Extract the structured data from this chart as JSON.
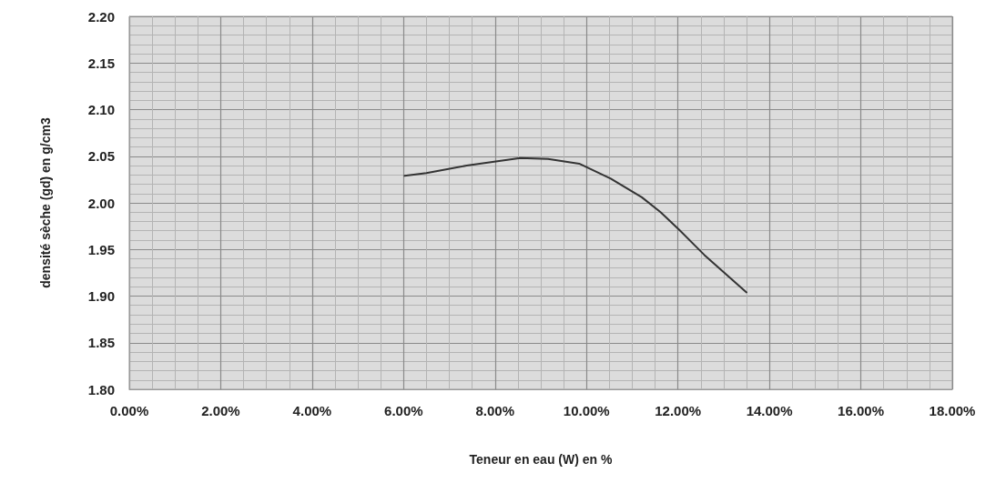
{
  "chart_data": {
    "type": "line",
    "xlabel": "Teneur en eau (W) en %",
    "ylabel": "densité sèche (gd) en g/cm3",
    "series": [
      {
        "color": "#333333",
        "x": [
          6.02,
          6.5,
          7.38,
          8.55,
          9.16,
          9.84,
          10.53,
          11.21,
          11.62,
          12.03,
          12.58,
          13.5
        ],
        "values": [
          2.029,
          2.032,
          2.04,
          2.048,
          2.047,
          2.042,
          2.026,
          2.006,
          1.99,
          1.971,
          1.944,
          1.904
        ]
      }
    ],
    "xlim": [
      0,
      18
    ],
    "xticks": [
      {
        "value": 0,
        "label": "0.00%"
      },
      {
        "value": 2,
        "label": "2.00%"
      },
      {
        "value": 4,
        "label": "4.00%"
      },
      {
        "value": 6,
        "label": "6.00%"
      },
      {
        "value": 8,
        "label": "8.00%"
      },
      {
        "value": 10,
        "label": "10.00%"
      },
      {
        "value": 12,
        "label": "12.00%"
      },
      {
        "value": 14,
        "label": "14.00%"
      },
      {
        "value": 16,
        "label": "16.00%"
      },
      {
        "value": 18,
        "label": "18.00%"
      }
    ],
    "ylim": [
      1.8,
      2.2
    ],
    "yticks": [
      {
        "value": 1.8,
        "label": "1.80"
      },
      {
        "value": 1.85,
        "label": "1.85"
      },
      {
        "value": 1.9,
        "label": "1.90"
      },
      {
        "value": 1.95,
        "label": "1.95"
      },
      {
        "value": 2.0,
        "label": "2.00"
      },
      {
        "value": 2.05,
        "label": "2.05"
      },
      {
        "value": 2.1,
        "label": "2.10"
      },
      {
        "value": 2.15,
        "label": "2.15"
      },
      {
        "value": 2.2,
        "label": "2.20"
      }
    ],
    "grid": true,
    "marker": "none",
    "line_style": "solid"
  }
}
